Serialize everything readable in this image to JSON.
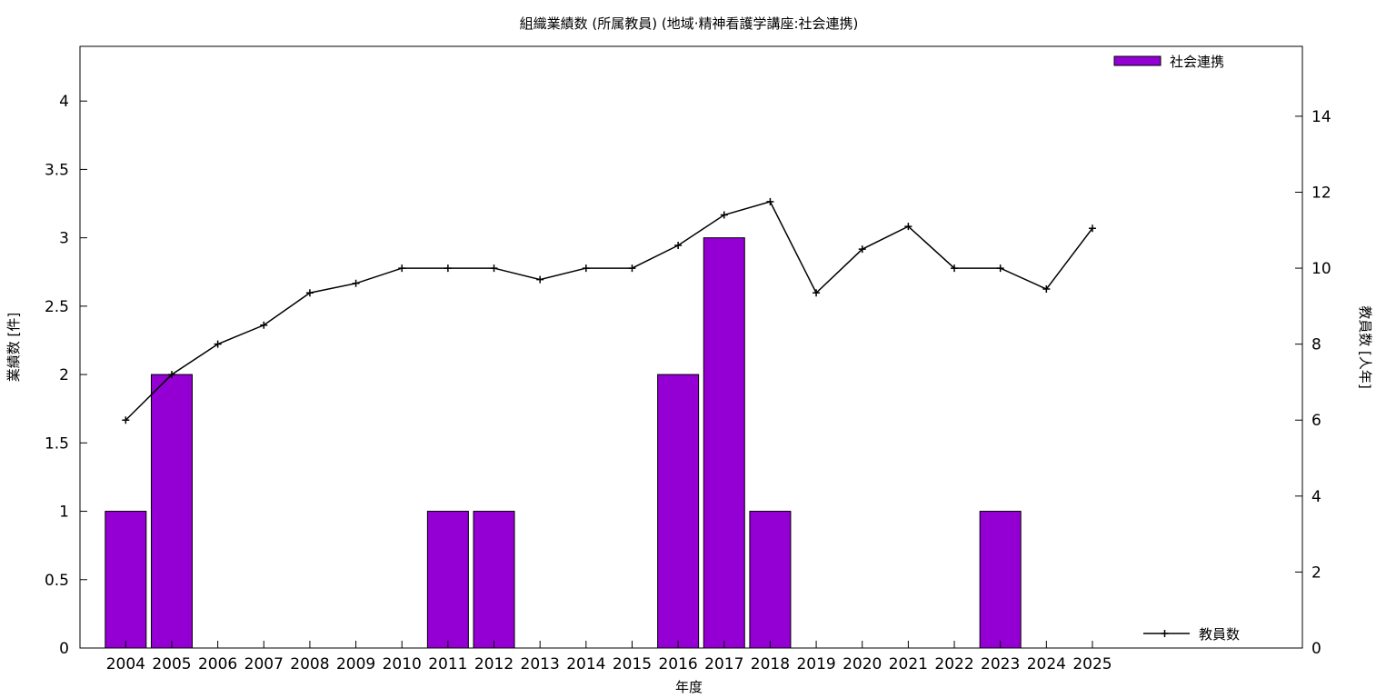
{
  "chart_data": {
    "type": "bar",
    "title": "組織業績数 (所属教員) (地域·精神看護学講座:社会連携)",
    "xlabel": "年度",
    "ylabel": "業績数 [件]",
    "y2label": "教員数 [人年]",
    "categories": [
      "2004",
      "2005",
      "2006",
      "2007",
      "2008",
      "2009",
      "2010",
      "2011",
      "2012",
      "2013",
      "2014",
      "2015",
      "2016",
      "2017",
      "2018",
      "2019",
      "2020",
      "2021",
      "2022",
      "2023",
      "2024",
      "2025"
    ],
    "series": [
      {
        "name": "社会連携",
        "type": "bar",
        "axis": "y",
        "color": "#9400d3",
        "values": [
          1,
          2,
          0,
          0,
          0,
          0,
          0,
          1,
          1,
          0,
          0,
          0,
          2,
          3,
          1,
          0,
          0,
          0,
          0,
          1,
          0,
          0
        ]
      },
      {
        "name": "教員数",
        "type": "line",
        "axis": "y2",
        "color": "#000000",
        "values": [
          6,
          7.2,
          8,
          8.5,
          9.35,
          9.6,
          10,
          10,
          10,
          9.7,
          10,
          10,
          10.6,
          11.4,
          11.75,
          9.35,
          10.5,
          11.1,
          10,
          10,
          9.45,
          11.05
        ]
      }
    ],
    "ylim": [
      0,
      4.4
    ],
    "y_ticks": [
      0,
      0.5,
      1,
      1.5,
      2,
      2.5,
      3,
      3.5,
      4
    ],
    "y_tick_labels": [
      "0",
      "0.5",
      "1",
      "1.5",
      "2",
      "2.5",
      "3",
      "3.5",
      "4"
    ],
    "y2lim": [
      0,
      15.84
    ],
    "y2_ticks": [
      0,
      2,
      4,
      6,
      8,
      10,
      12,
      14
    ],
    "y2_tick_labels": [
      "0",
      "2",
      "4",
      "6",
      "8",
      "10",
      "12",
      "14"
    ],
    "grid": false,
    "legend": [
      {
        "label": "社会連携",
        "placement": "top-right"
      },
      {
        "label": "教員数",
        "placement": "bottom-right"
      }
    ]
  }
}
